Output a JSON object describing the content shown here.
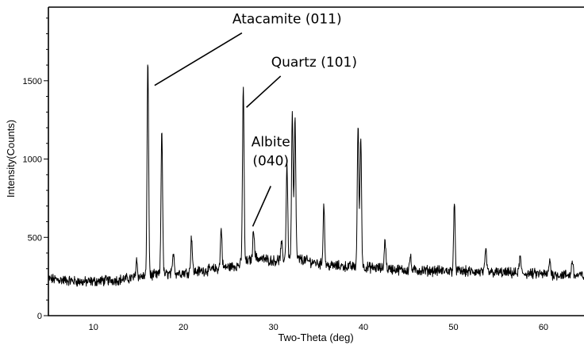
{
  "chart_data": {
    "type": "line",
    "title": "",
    "xlabel": "Two-Theta (deg)",
    "ylabel": "Intensity(Counts)",
    "xlim": [
      5,
      64.5
    ],
    "ylim": [
      0,
      1970
    ],
    "x_ticks_major": [
      10,
      20,
      30,
      40,
      50,
      60
    ],
    "x_ticks_minor_step": 2,
    "y_ticks_major": [
      0,
      500,
      1000,
      1500
    ],
    "y_ticks_minor_step": 100,
    "grid": false,
    "legend": "none",
    "line_color": "#000000",
    "baseline": [
      [
        5,
        235
      ],
      [
        9,
        215
      ],
      [
        13,
        230
      ],
      [
        16,
        255
      ],
      [
        18,
        265
      ],
      [
        22,
        285
      ],
      [
        26,
        320
      ],
      [
        28,
        370
      ],
      [
        30,
        350
      ],
      [
        31,
        360
      ],
      [
        33,
        360
      ],
      [
        36,
        320
      ],
      [
        40,
        310
      ],
      [
        45,
        290
      ],
      [
        50,
        285
      ],
      [
        55,
        275
      ],
      [
        60,
        265
      ],
      [
        64.5,
        255
      ]
    ],
    "peaks": [
      {
        "x": 14.8,
        "y": 360
      },
      {
        "x": 16.05,
        "y": 1640
      },
      {
        "x": 17.6,
        "y": 1200
      },
      {
        "x": 18.9,
        "y": 410
      },
      {
        "x": 20.9,
        "y": 510
      },
      {
        "x": 24.2,
        "y": 560
      },
      {
        "x": 26.65,
        "y": 1470
      },
      {
        "x": 27.8,
        "y": 560
      },
      {
        "x": 30.9,
        "y": 460
      },
      {
        "x": 31.5,
        "y": 970
      },
      {
        "x": 32.1,
        "y": 1290
      },
      {
        "x": 32.4,
        "y": 1250
      },
      {
        "x": 35.6,
        "y": 710
      },
      {
        "x": 39.4,
        "y": 1220
      },
      {
        "x": 39.7,
        "y": 1150
      },
      {
        "x": 42.4,
        "y": 490
      },
      {
        "x": 45.2,
        "y": 380
      },
      {
        "x": 50.1,
        "y": 705
      },
      {
        "x": 53.6,
        "y": 420
      },
      {
        "x": 57.4,
        "y": 380
      },
      {
        "x": 60.7,
        "y": 360
      },
      {
        "x": 63.2,
        "y": 360
      }
    ],
    "annotations": [
      {
        "lines": [
          "Atacamite (011)"
        ],
        "target": {
          "x": 16.8,
          "y": 1470
        },
        "anchor": {
          "x": 26.5,
          "y": 1815
        }
      },
      {
        "lines": [
          "Quartz (101)"
        ],
        "target": {
          "x": 27.0,
          "y": 1330
        },
        "anchor": {
          "x": 30.8,
          "y": 1540
        }
      },
      {
        "lines": [
          "Albite",
          "(040)"
        ],
        "target": {
          "x": 27.7,
          "y": 570
        },
        "anchor": {
          "x": 29.7,
          "y": 1030
        }
      }
    ]
  }
}
